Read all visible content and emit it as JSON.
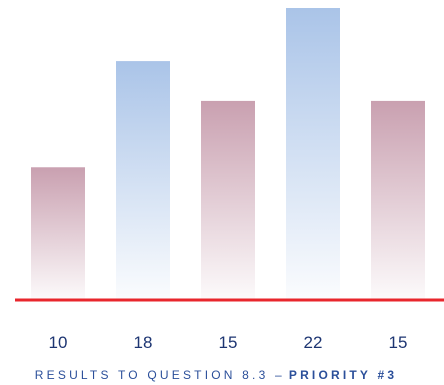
{
  "chart_data": {
    "type": "bar",
    "title": "RESULTS TO QUESTION 8.3 –",
    "title_emphasis": "PRIORITY #3",
    "values": [
      10,
      18,
      15,
      22,
      15
    ],
    "colors": [
      "#c9a0b0",
      "#aac4e8",
      "#c9a0b0",
      "#aac4e8",
      "#c9a0b0"
    ],
    "baseline_color": "#e8262c"
  }
}
